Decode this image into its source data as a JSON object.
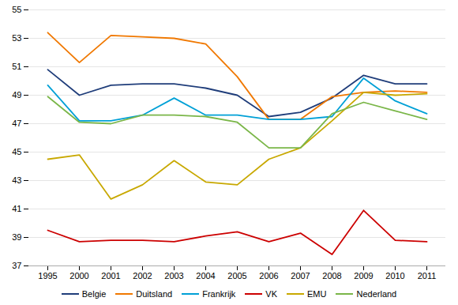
{
  "chart_data": {
    "type": "line",
    "categories": [
      "1995",
      "2000",
      "2001",
      "2002",
      "2003",
      "2004",
      "2005",
      "2006",
      "2007",
      "2008",
      "2009",
      "2010",
      "2011"
    ],
    "series": [
      {
        "name": "Belgie",
        "color": "#1f3d7a",
        "values": [
          50.8,
          49.0,
          49.7,
          49.8,
          49.8,
          49.5,
          49.0,
          47.5,
          47.8,
          48.8,
          50.4,
          49.8,
          49.8
        ]
      },
      {
        "name": "Duitsland",
        "color": "#f07800",
        "values": [
          53.4,
          51.3,
          53.2,
          53.1,
          53.0,
          52.6,
          50.3,
          47.3,
          47.3,
          48.9,
          49.2,
          49.3,
          49.2
        ]
      },
      {
        "name": "Frankrijk",
        "color": "#00a0d6",
        "values": [
          49.7,
          47.2,
          47.2,
          47.6,
          48.8,
          47.6,
          47.6,
          47.3,
          47.3,
          47.5,
          50.2,
          48.6,
          47.7
        ]
      },
      {
        "name": "VK",
        "color": "#cc0000",
        "values": [
          39.5,
          38.7,
          38.8,
          38.8,
          38.7,
          39.1,
          39.4,
          38.7,
          39.3,
          37.8,
          40.9,
          38.8,
          38.7
        ]
      },
      {
        "name": "EMU",
        "color": "#c8a800",
        "values": [
          44.5,
          44.8,
          41.7,
          42.7,
          44.4,
          42.9,
          42.7,
          44.5,
          45.3,
          47.2,
          49.2,
          49.0,
          49.1
        ]
      },
      {
        "name": "Nederland",
        "color": "#7ab648",
        "values": [
          48.9,
          47.1,
          47.0,
          47.6,
          47.6,
          47.5,
          47.1,
          45.3,
          45.3,
          47.7,
          48.5,
          47.9,
          47.3
        ]
      }
    ],
    "ylim": [
      37,
      55
    ],
    "yticks": [
      37,
      39,
      41,
      43,
      45,
      47,
      49,
      51,
      53,
      55
    ],
    "grid": true,
    "legend": "bottom"
  }
}
